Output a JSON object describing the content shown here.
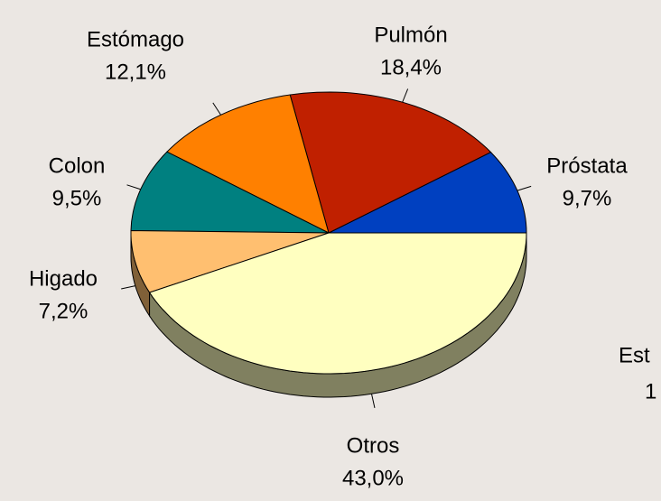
{
  "chart_data": {
    "type": "pie",
    "categories": [
      "Próstata",
      "Pulmón",
      "Estómago",
      "Colon",
      "Higado",
      "Otros"
    ],
    "values": [
      9.7,
      18.4,
      12.1,
      9.5,
      7.2,
      43.0
    ],
    "value_labels": [
      "9,7%",
      "18,4%",
      "12,1%",
      "9,5%",
      "7,2%",
      "43,0%"
    ],
    "colors": [
      "#0040c0",
      "#c02000",
      "#ff8000",
      "#008080",
      "#ffbf70",
      "#ffffc0"
    ],
    "annotations": [
      "Est",
      "1"
    ]
  }
}
